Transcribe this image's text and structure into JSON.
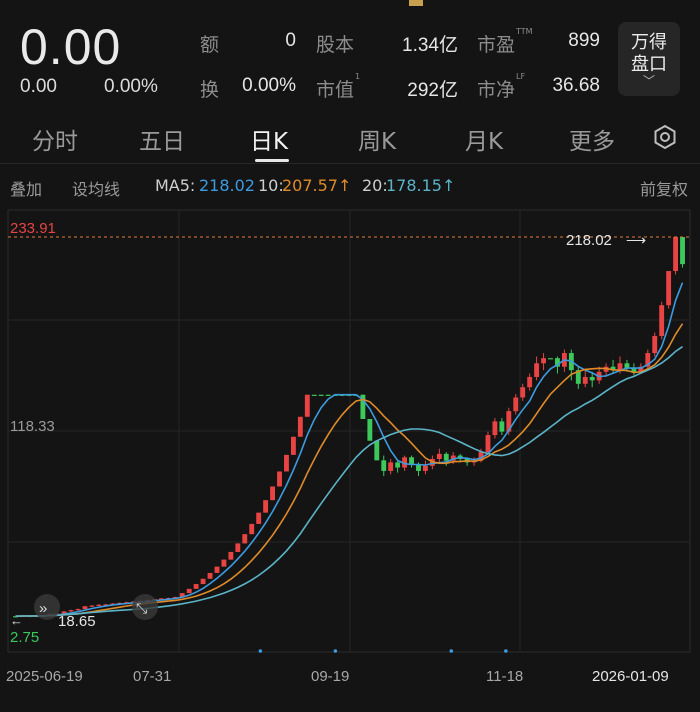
{
  "header": {
    "price": "0.00",
    "change": "0.00",
    "change_pct": "0.00%",
    "stats": {
      "amount_label": "额",
      "amount_value": "0",
      "turnover_label": "换",
      "turnover_value": "0.00%",
      "shares_label": "股本",
      "shares_value": "1.34亿",
      "mktcap_label": "市值",
      "mktcap_sup": "1",
      "mktcap_value": "292亿",
      "pe_label": "市盈",
      "pe_sup": "TTM",
      "pe_value": "899",
      "pb_label": "市净",
      "pb_sup": "LF",
      "pb_value": "36.68"
    },
    "wind_button": {
      "line1": "万得",
      "line2": "盘口",
      "chevron": "﹀"
    }
  },
  "tabs": [
    {
      "label": "分时",
      "active": false
    },
    {
      "label": "五日",
      "active": false
    },
    {
      "label": "日K",
      "active": true
    },
    {
      "label": "周K",
      "active": false
    },
    {
      "label": "月K",
      "active": false
    },
    {
      "label": "更多",
      "active": false
    }
  ],
  "ma_row": {
    "overlay": "叠加",
    "set_ma": "设均线",
    "ma5_label": "MA5:",
    "ma5_value": "218.02",
    "ma10_label": "10:",
    "ma10_value": "207.57↑",
    "ma20_label": "20:",
    "ma20_value": "178.15↑",
    "adjust": "前复权"
  },
  "chart_data": {
    "type": "candlestick",
    "y_high_label": "233.91",
    "y_mid_label": "118.33",
    "y_low_label": "2.75",
    "ylim": [
      2.75,
      233.91
    ],
    "latest_close_label": "218.02",
    "start_price_label": "18.65",
    "x_ticks": [
      "2025-06-19",
      "07-31",
      "09-19",
      "11-18",
      "2026-01-09"
    ],
    "candles": [
      {
        "o": 12,
        "c": 12,
        "h": 12,
        "l": 12
      },
      {
        "o": 12,
        "c": 12.2,
        "h": 12.4,
        "l": 11.8
      },
      {
        "o": 12.2,
        "c": 12.1,
        "h": 12.4,
        "l": 11.9
      },
      {
        "o": 12.1,
        "c": 12.3,
        "h": 12.6,
        "l": 11.9
      },
      {
        "o": 12.3,
        "c": 12.4,
        "h": 12.7,
        "l": 12.1
      },
      {
        "o": 12.4,
        "c": 13.2,
        "h": 13.5,
        "l": 12.2
      },
      {
        "o": 13.2,
        "c": 13.4,
        "h": 13.8,
        "l": 13
      },
      {
        "o": 13.4,
        "c": 14.8,
        "h": 15,
        "l": 13.2
      },
      {
        "o": 14.8,
        "c": 15.5,
        "h": 15.8,
        "l": 14.4
      },
      {
        "o": 15.5,
        "c": 16.2,
        "h": 16.5,
        "l": 15.2
      },
      {
        "o": 16.2,
        "c": 17.8,
        "h": 18,
        "l": 16
      },
      {
        "o": 17.8,
        "c": 18.2,
        "h": 18.5,
        "l": 17.5
      },
      {
        "o": 18.2,
        "c": 18.7,
        "h": 19,
        "l": 18
      },
      {
        "o": 18.7,
        "c": 18.9,
        "h": 19.2,
        "l": 18.5
      },
      {
        "o": 18.9,
        "c": 19.4,
        "h": 19.7,
        "l": 18.7
      },
      {
        "o": 19.4,
        "c": 19.8,
        "h": 20,
        "l": 19.2
      },
      {
        "o": 19.8,
        "c": 20.2,
        "h": 20.5,
        "l": 19.6
      },
      {
        "o": 20.2,
        "c": 20.6,
        "h": 20.8,
        "l": 20
      },
      {
        "o": 20.6,
        "c": 21,
        "h": 21.2,
        "l": 20.4
      },
      {
        "o": 21,
        "c": 21.5,
        "h": 21.8,
        "l": 20.8
      },
      {
        "o": 21.5,
        "c": 22,
        "h": 22.2,
        "l": 21.3
      },
      {
        "o": 22,
        "c": 22.4,
        "h": 22.6,
        "l": 21.8
      },
      {
        "o": 22.4,
        "c": 22.6,
        "h": 22.9,
        "l": 22.2
      },
      {
        "o": 22.6,
        "c": 23.2,
        "h": 23.4,
        "l": 22.4
      },
      {
        "o": 23.2,
        "c": 25.5,
        "h": 25.5,
        "l": 23.2
      },
      {
        "o": 25.5,
        "c": 28,
        "h": 28,
        "l": 25.5
      },
      {
        "o": 28,
        "c": 30.8,
        "h": 30.8,
        "l": 28
      },
      {
        "o": 30.8,
        "c": 33.9,
        "h": 33.9,
        "l": 30.8
      },
      {
        "o": 33.9,
        "c": 37.3,
        "h": 37.3,
        "l": 33.9
      },
      {
        "o": 37.3,
        "c": 41,
        "h": 41,
        "l": 37.3
      },
      {
        "o": 41,
        "c": 45.1,
        "h": 45.1,
        "l": 41
      },
      {
        "o": 45.1,
        "c": 49.6,
        "h": 49.6,
        "l": 45.1
      },
      {
        "o": 49.6,
        "c": 54.6,
        "h": 54.6,
        "l": 49.6
      },
      {
        "o": 54.6,
        "c": 60,
        "h": 60,
        "l": 54.6
      },
      {
        "o": 60,
        "c": 66,
        "h": 66,
        "l": 60
      },
      {
        "o": 66,
        "c": 72.6,
        "h": 72.6,
        "l": 66
      },
      {
        "o": 72.6,
        "c": 79.9,
        "h": 79.9,
        "l": 72.6
      },
      {
        "o": 79.9,
        "c": 87.9,
        "h": 87.9,
        "l": 79.9
      },
      {
        "o": 87.9,
        "c": 96.7,
        "h": 96.7,
        "l": 87.9
      },
      {
        "o": 96.7,
        "c": 106.4,
        "h": 106.4,
        "l": 96.7
      },
      {
        "o": 106.4,
        "c": 117,
        "h": 117,
        "l": 106.4
      },
      {
        "o": 117,
        "c": 128.7,
        "h": 128.7,
        "l": 117
      },
      {
        "o": 128.7,
        "c": 141.6,
        "h": 141.6,
        "l": 128.7
      },
      {
        "o": 141.6,
        "c": 141.6,
        "h": 141.6,
        "l": 141.6
      },
      {
        "o": 141.6,
        "c": 141.6,
        "h": 141.6,
        "l": 141.6
      },
      {
        "o": 141.6,
        "c": 141.6,
        "h": 141.6,
        "l": 141.6
      },
      {
        "o": 141.6,
        "c": 141.6,
        "h": 141.6,
        "l": 141.6
      },
      {
        "o": 141.6,
        "c": 141.6,
        "h": 141.6,
        "l": 141.6
      },
      {
        "o": 141.6,
        "c": 141.6,
        "h": 141.6,
        "l": 141.6
      },
      {
        "o": 141.6,
        "c": 141.6,
        "h": 141.6,
        "l": 141.6
      },
      {
        "o": 141.6,
        "c": 127.4,
        "h": 141.6,
        "l": 127.4
      },
      {
        "o": 127.4,
        "c": 114.7,
        "h": 127.4,
        "l": 114.7
      },
      {
        "o": 114.7,
        "c": 103.2,
        "h": 114.7,
        "l": 103.2
      },
      {
        "o": 103.2,
        "c": 97,
        "h": 106,
        "l": 94
      },
      {
        "o": 97,
        "c": 102,
        "h": 104,
        "l": 95
      },
      {
        "o": 102,
        "c": 99,
        "h": 103,
        "l": 96
      },
      {
        "o": 99,
        "c": 105,
        "h": 106,
        "l": 97
      },
      {
        "o": 105,
        "c": 101,
        "h": 106,
        "l": 99
      },
      {
        "o": 101,
        "c": 97,
        "h": 102,
        "l": 94
      },
      {
        "o": 97,
        "c": 100,
        "h": 103,
        "l": 95
      },
      {
        "o": 100,
        "c": 104,
        "h": 106,
        "l": 98
      },
      {
        "o": 104,
        "c": 107,
        "h": 110,
        "l": 102
      },
      {
        "o": 107,
        "c": 103,
        "h": 108,
        "l": 100
      },
      {
        "o": 103,
        "c": 106,
        "h": 108,
        "l": 101
      },
      {
        "o": 106,
        "c": 104,
        "h": 107,
        "l": 102
      },
      {
        "o": 104,
        "c": 102,
        "h": 105,
        "l": 100
      },
      {
        "o": 102,
        "c": 103,
        "h": 105,
        "l": 100
      },
      {
        "o": 103,
        "c": 108,
        "h": 110,
        "l": 102
      },
      {
        "o": 108,
        "c": 118,
        "h": 120,
        "l": 107
      },
      {
        "o": 118,
        "c": 126,
        "h": 128,
        "l": 116
      },
      {
        "o": 126,
        "c": 120,
        "h": 128,
        "l": 118
      },
      {
        "o": 120,
        "c": 132,
        "h": 134,
        "l": 118
      },
      {
        "o": 132,
        "c": 140,
        "h": 142,
        "l": 130
      },
      {
        "o": 140,
        "c": 146,
        "h": 148,
        "l": 138
      },
      {
        "o": 146,
        "c": 152,
        "h": 154,
        "l": 144
      },
      {
        "o": 152,
        "c": 160,
        "h": 164,
        "l": 150
      },
      {
        "o": 160,
        "c": 163,
        "h": 166,
        "l": 156
      },
      {
        "o": 163,
        "c": 163,
        "h": 163,
        "l": 163
      },
      {
        "o": 163,
        "c": 158,
        "h": 164,
        "l": 154
      },
      {
        "o": 158,
        "c": 166,
        "h": 168,
        "l": 155
      },
      {
        "o": 166,
        "c": 156,
        "h": 168,
        "l": 150
      },
      {
        "o": 156,
        "c": 148,
        "h": 158,
        "l": 145
      },
      {
        "o": 148,
        "c": 152,
        "h": 156,
        "l": 146
      },
      {
        "o": 152,
        "c": 150,
        "h": 155,
        "l": 146
      },
      {
        "o": 150,
        "c": 155,
        "h": 158,
        "l": 148
      },
      {
        "o": 155,
        "c": 158,
        "h": 160,
        "l": 152
      },
      {
        "o": 158,
        "c": 156,
        "h": 162,
        "l": 154
      },
      {
        "o": 156,
        "c": 160,
        "h": 164,
        "l": 154
      },
      {
        "o": 160,
        "c": 157,
        "h": 162,
        "l": 155
      },
      {
        "o": 157,
        "c": 155,
        "h": 160,
        "l": 153
      },
      {
        "o": 155,
        "c": 158,
        "h": 160,
        "l": 154
      },
      {
        "o": 158,
        "c": 166,
        "h": 168,
        "l": 156
      },
      {
        "o": 166,
        "c": 176,
        "h": 178,
        "l": 164
      },
      {
        "o": 176,
        "c": 194,
        "h": 196,
        "l": 174
      },
      {
        "o": 194,
        "c": 214,
        "h": 214,
        "l": 192
      },
      {
        "o": 214,
        "c": 233.91,
        "h": 233.91,
        "l": 212
      },
      {
        "o": 233.91,
        "c": 218.02,
        "h": 233.91,
        "l": 216
      }
    ],
    "series": [
      {
        "name": "MA5",
        "color": "#3d9be0",
        "last": 218.02
      },
      {
        "name": "MA10",
        "color": "#e08b2a",
        "last": 207.57
      },
      {
        "name": "MA20",
        "color": "#5bb4c8",
        "last": 178.15
      }
    ],
    "dots_x_fraction": [
      0.37,
      0.48,
      0.65,
      0.73
    ]
  }
}
